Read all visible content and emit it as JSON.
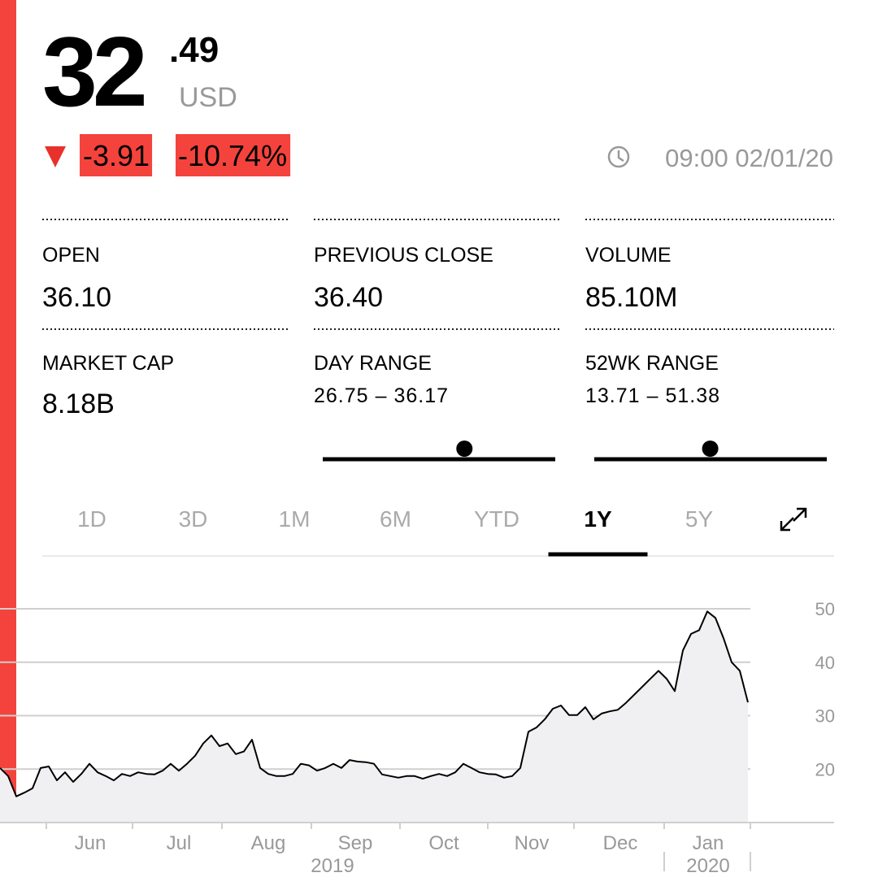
{
  "quote": {
    "price_int": "32",
    "price_dec": ".49",
    "currency": "USD",
    "change": "-3.91",
    "change_pct": "-10.74%",
    "time": "09:00 02/01/20"
  },
  "stats": [
    {
      "label": "OPEN",
      "value": "36.10"
    },
    {
      "label": "PREVIOUS CLOSE",
      "value": "36.40"
    },
    {
      "label": "VOLUME",
      "value": "85.10M"
    },
    {
      "label": "MARKET CAP",
      "value": "8.18B"
    }
  ],
  "ranges": [
    {
      "label": "DAY RANGE",
      "low": 26.75,
      "sep": "–",
      "high": 36.17
    },
    {
      "label": "52WK RANGE",
      "low": 13.71,
      "sep": "–",
      "high": 51.38
    }
  ],
  "tabs": [
    "1D",
    "3D",
    "1M",
    "6M",
    "YTD",
    "1Y",
    "5Y"
  ],
  "active_tab": 5,
  "chart_data": {
    "type": "line",
    "color": "#000000",
    "fill": "#f0f0f2",
    "values": [
      20.2,
      18.7,
      14.9,
      15.6,
      16.4,
      20.2,
      20.5,
      17.9,
      19.4,
      17.6,
      19.1,
      21,
      19.4,
      18.7,
      17.9,
      19.1,
      18.7,
      19.4,
      19.1,
      19,
      19.7,
      21,
      19.7,
      21,
      22.5,
      24.8,
      26.3,
      24.3,
      24.8,
      22.8,
      23.3,
      25.5,
      20.2,
      19.1,
      18.7,
      18.7,
      19.1,
      21,
      20.7,
      19.7,
      20.2,
      21,
      20.2,
      21.7,
      21.4,
      21.3,
      21,
      19,
      18.7,
      18.4,
      18.7,
      18.7,
      18.2,
      18.7,
      19.1,
      18.7,
      19.4,
      21,
      20.2,
      19.4,
      19.1,
      19,
      18.4,
      18.7,
      20.2,
      27,
      27.8,
      29.3,
      31.3,
      31.9,
      30.1,
      30.1,
      31.6,
      29.3,
      30.4,
      30.8,
      31.1,
      32.4,
      33.9,
      35.4,
      36.9,
      38.4,
      36.9,
      34.6,
      42.2,
      45.3,
      46,
      49.5,
      48.3,
      44.5,
      40,
      38.4,
      32.5
    ],
    "xlim": [
      0,
      92
    ],
    "ylim": [
      10,
      50
    ],
    "yticks": [
      20,
      30,
      40,
      50
    ],
    "grid": true,
    "xticks": [
      {
        "value": 11.1,
        "label": "Jun"
      },
      {
        "value": 22,
        "label": "Jul"
      },
      {
        "value": 33,
        "label": "Aug"
      },
      {
        "value": 43.7,
        "label": "Sep"
      },
      {
        "value": 54.6,
        "label": "Oct"
      },
      {
        "value": 65.4,
        "label": "Nov"
      },
      {
        "value": 76.3,
        "label": "Dec"
      },
      {
        "value": 87.1,
        "label": "Jan"
      }
    ],
    "xminorticks": [
      5.7,
      16.3,
      27.3,
      38.3,
      49.2,
      60,
      70.6,
      81.7,
      92.3
    ],
    "year_labels": [
      {
        "value": 40.9,
        "label": "2019"
      },
      {
        "value": 87.1,
        "label": "2020"
      }
    ]
  }
}
